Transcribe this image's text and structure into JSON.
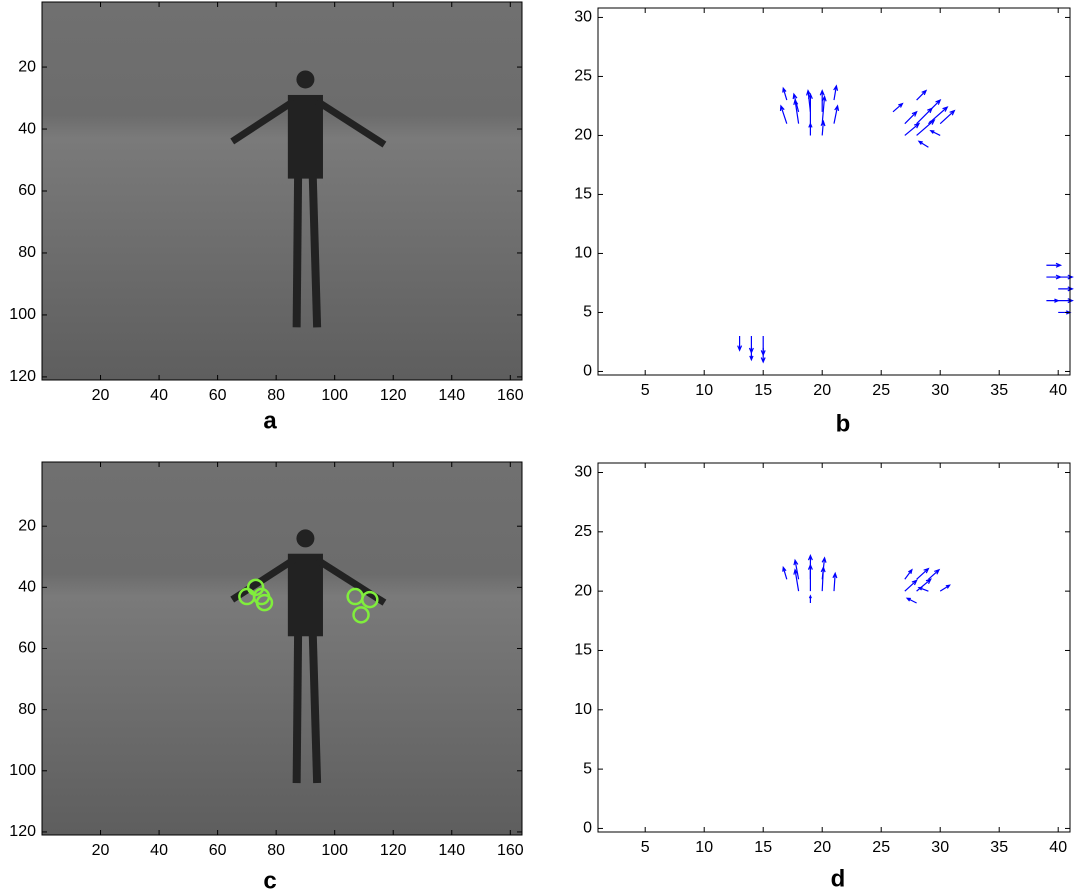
{
  "chart_data": [
    {
      "type": "image",
      "caption": "a",
      "xlim": [
        0,
        164
      ],
      "ylim": [
        -1,
        121
      ],
      "reverse_y": true,
      "xticks": [
        20,
        40,
        60,
        80,
        100,
        120,
        140,
        160
      ],
      "yticks": [
        20,
        40,
        60,
        80,
        100,
        120
      ]
    },
    {
      "type": "quiver",
      "caption": "b",
      "color": "#0000ff",
      "xlim": [
        1,
        41
      ],
      "ylim": [
        -0.3,
        30.8
      ],
      "xticks": [
        5,
        10,
        15,
        20,
        25,
        30,
        35,
        40
      ],
      "yticks": [
        0,
        5,
        10,
        15,
        20,
        25,
        30
      ],
      "x": [
        17,
        18,
        19,
        20,
        21,
        18,
        19,
        20,
        17,
        21,
        19,
        20,
        27,
        28,
        29,
        28,
        27,
        30,
        29,
        28,
        26,
        30,
        29,
        13,
        14,
        15,
        14,
        15,
        39,
        40,
        39,
        40,
        40,
        39,
        40
      ],
      "y": [
        21,
        21,
        21,
        21,
        21,
        22,
        22,
        22,
        23,
        23,
        20,
        20,
        20,
        20,
        21,
        21,
        21,
        21,
        22,
        23,
        22,
        20,
        19,
        3,
        3,
        3,
        2,
        2,
        8,
        8,
        9,
        7,
        6,
        6,
        5
      ],
      "u": [
        -0.5,
        -0.3,
        0,
        0.2,
        0.3,
        -0.4,
        -0.2,
        0,
        -0.3,
        0.2,
        0,
        0.1,
        1.2,
        1.5,
        1.6,
        1.3,
        1,
        1.2,
        1,
        0.8,
        0.8,
        -0.8,
        -0.8,
        0,
        0,
        0,
        0,
        0,
        1.2,
        1.2,
        1.2,
        1.2,
        1.2,
        1,
        1
      ],
      "v": [
        1.5,
        2,
        2.5,
        2.3,
        1.5,
        1.5,
        1.8,
        1.8,
        1,
        1.2,
        1,
        1.2,
        1,
        1.3,
        1.4,
        1.3,
        1,
        1.1,
        1,
        0.8,
        0.7,
        0.4,
        0.5,
        -1.2,
        -1.4,
        -1.6,
        -1,
        -1.2,
        0,
        0,
        0,
        0,
        0,
        0,
        0
      ]
    },
    {
      "type": "image",
      "caption": "c",
      "xlim": [
        0,
        164
      ],
      "ylim": [
        -1,
        121
      ],
      "reverse_y": true,
      "xticks": [
        20,
        40,
        60,
        80,
        100,
        120,
        140,
        160
      ],
      "yticks": [
        20,
        40,
        60,
        80,
        100,
        120
      ],
      "markers": {
        "color": "#80ee3c",
        "x": [
          70,
          73,
          75,
          76,
          107,
          112,
          109
        ],
        "y": [
          43,
          40,
          43,
          45,
          43,
          44,
          49
        ]
      }
    },
    {
      "type": "quiver",
      "caption": "d",
      "color": "#0000ff",
      "xlim": [
        1,
        41
      ],
      "ylim": [
        -0.3,
        30.8
      ],
      "xticks": [
        5,
        10,
        15,
        20,
        25,
        30,
        35,
        40
      ],
      "yticks": [
        0,
        5,
        10,
        15,
        20,
        25,
        30
      ],
      "x": [
        18,
        18,
        19,
        19,
        20,
        20,
        21,
        17,
        19,
        27,
        28,
        28,
        29,
        27,
        29,
        28,
        30
      ],
      "y": [
        20,
        21,
        20,
        21,
        20,
        21,
        20,
        21,
        19,
        20,
        20,
        21,
        21,
        21,
        20,
        19,
        20
      ],
      "u": [
        -0.3,
        -0.3,
        0,
        0,
        0.1,
        0.2,
        0.1,
        -0.3,
        0,
        1,
        1.2,
        1,
        0.9,
        0.6,
        -0.8,
        -0.8,
        0.8
      ],
      "v": [
        1.8,
        1.6,
        2.2,
        2,
        2,
        1.8,
        1.5,
        1,
        0.6,
        0.9,
        1,
        0.9,
        0.8,
        0.8,
        0.3,
        0.4,
        0.5
      ]
    }
  ]
}
